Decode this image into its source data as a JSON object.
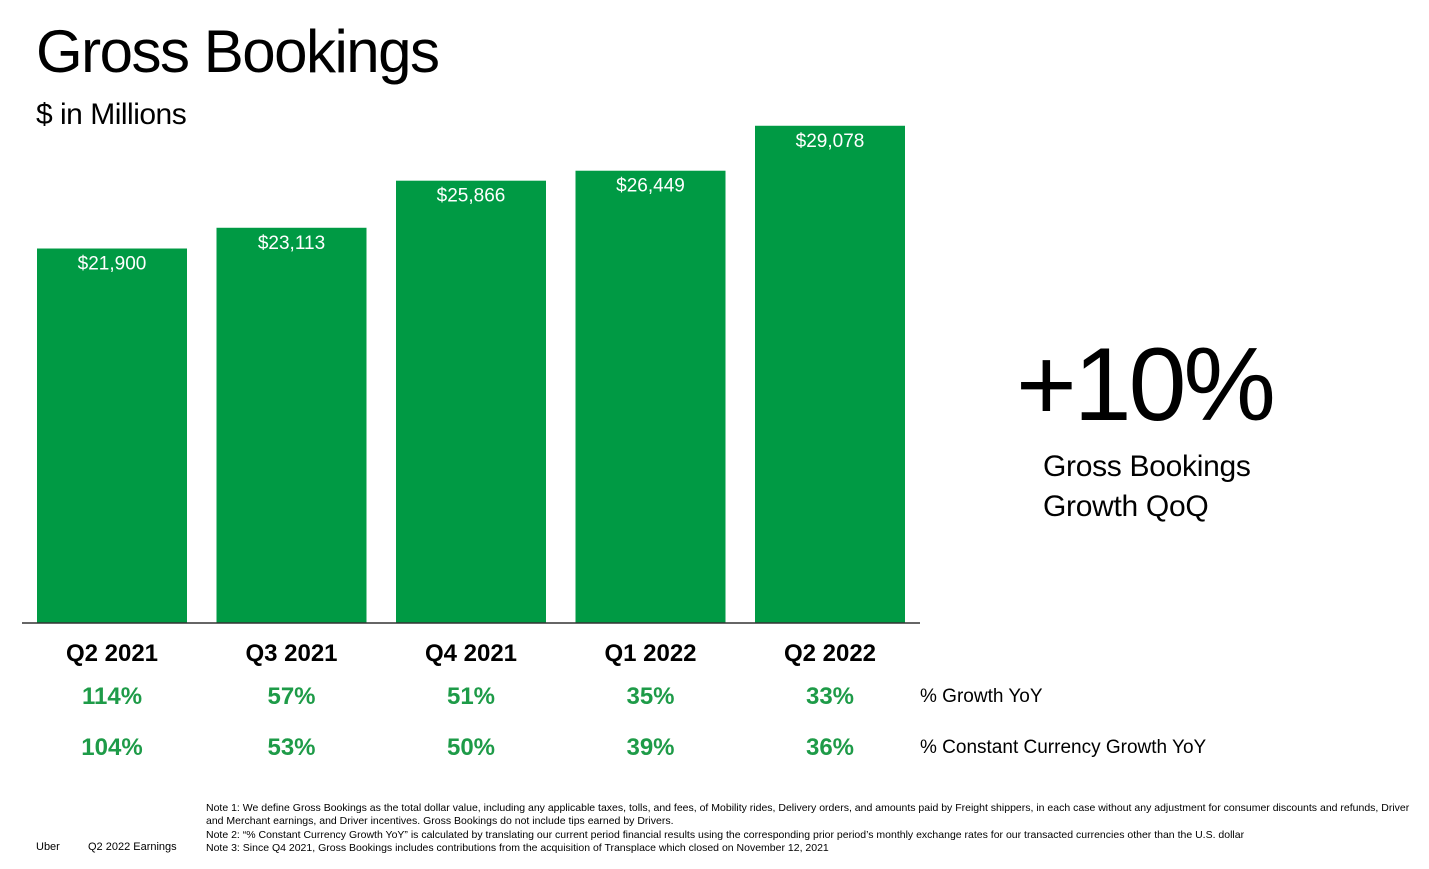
{
  "page_title": "Gross Bookings",
  "unit_label": "$ in Millions",
  "chart_data": {
    "type": "bar",
    "title": "Gross Bookings",
    "ylabel": "$ in Millions",
    "xlabel": "",
    "categories": [
      "Q2 2021",
      "Q3 2021",
      "Q4 2021",
      "Q1 2022",
      "Q2 2022"
    ],
    "values": [
      21900,
      23113,
      25866,
      26449,
      29078
    ],
    "value_labels": [
      "$21,900",
      "$23,113",
      "$25,866",
      "$26,449",
      "$29,078"
    ],
    "ylim": [
      0,
      30000
    ],
    "grid": false,
    "bar_color": "#009a44"
  },
  "growth_rows": [
    {
      "label": "% Growth YoY",
      "values": [
        "114%",
        "57%",
        "51%",
        "35%",
        "33%"
      ]
    },
    {
      "label": "% Constant Currency Growth YoY",
      "values": [
        "104%",
        "53%",
        "50%",
        "39%",
        "36%"
      ]
    }
  ],
  "highlight": {
    "value": "+10%",
    "caption_line1": "Gross Bookings",
    "caption_line2": "Growth QoQ"
  },
  "footer": {
    "brand": "Uber",
    "deck": "Q2 2022 Earnings",
    "notes": [
      "Note 1: We define Gross Bookings as the total dollar value, including any applicable taxes, tolls, and fees, of Mobility rides, Delivery orders, and amounts paid by Freight shippers, in each case without any adjustment for consumer discounts and refunds, Driver and Merchant earnings, and Driver incentives. Gross Bookings do not include tips earned by Drivers.",
      "Note 2: “% Constant Currency Growth YoY” is calculated by translating our current period financial results using the corresponding prior period’s monthly exchange rates for our transacted currencies other than the U.S. dollar",
      "Note 3: Since Q4 2021, Gross Bookings includes contributions from the acquisition of Transplace which closed on November 12, 2021"
    ]
  },
  "colors": {
    "bar": "#009a44",
    "growth_text": "#1e9b48",
    "axis": "#333333"
  }
}
